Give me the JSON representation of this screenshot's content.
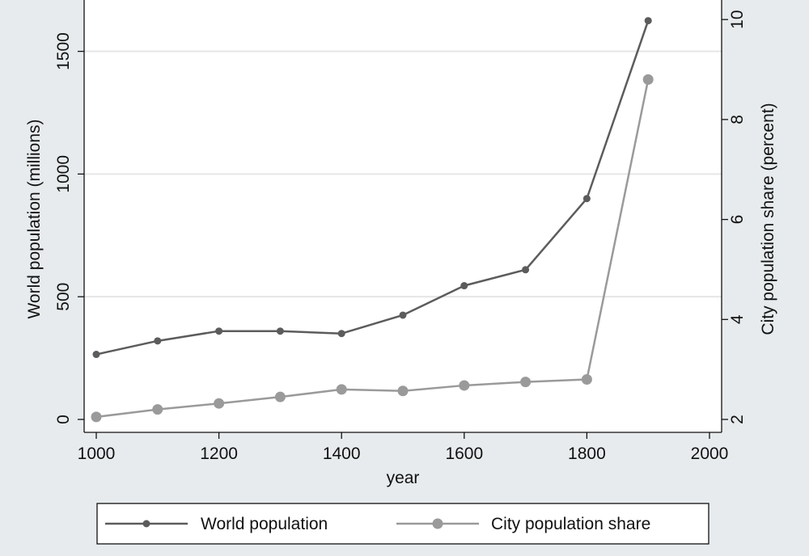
{
  "chart_data": {
    "type": "line",
    "title": "",
    "xlabel": "year",
    "ylabel": "World population (millions)",
    "y2label": "City population share (percent)",
    "x": [
      1000,
      1100,
      1200,
      1300,
      1400,
      1500,
      1600,
      1700,
      1800,
      1900
    ],
    "xlim": [
      1000,
      2000
    ],
    "ylim": [
      0,
      1650
    ],
    "y2lim": [
      2,
      10.1
    ],
    "xticks": [
      1000,
      1200,
      1400,
      1600,
      1800,
      2000
    ],
    "yticks": [
      0,
      500,
      1000,
      1500
    ],
    "y2ticks": [
      2,
      4,
      6,
      8,
      10
    ],
    "grid": true,
    "legend_position": "bottom",
    "series": [
      {
        "name": "World population",
        "axis": "left",
        "color": "#5c5c5c",
        "values": [
          265,
          320,
          360,
          360,
          350,
          425,
          545,
          610,
          900,
          1625
        ]
      },
      {
        "name": "City population share",
        "axis": "right",
        "color": "#9a9a9a",
        "values": [
          2.05,
          2.2,
          2.32,
          2.45,
          2.6,
          2.57,
          2.68,
          2.75,
          2.8,
          8.8
        ]
      }
    ]
  },
  "colors": {
    "background": "#e7ebed",
    "plot_background": "#ffffff",
    "gridline": "#e6e6e6",
    "axis": "#111111"
  }
}
